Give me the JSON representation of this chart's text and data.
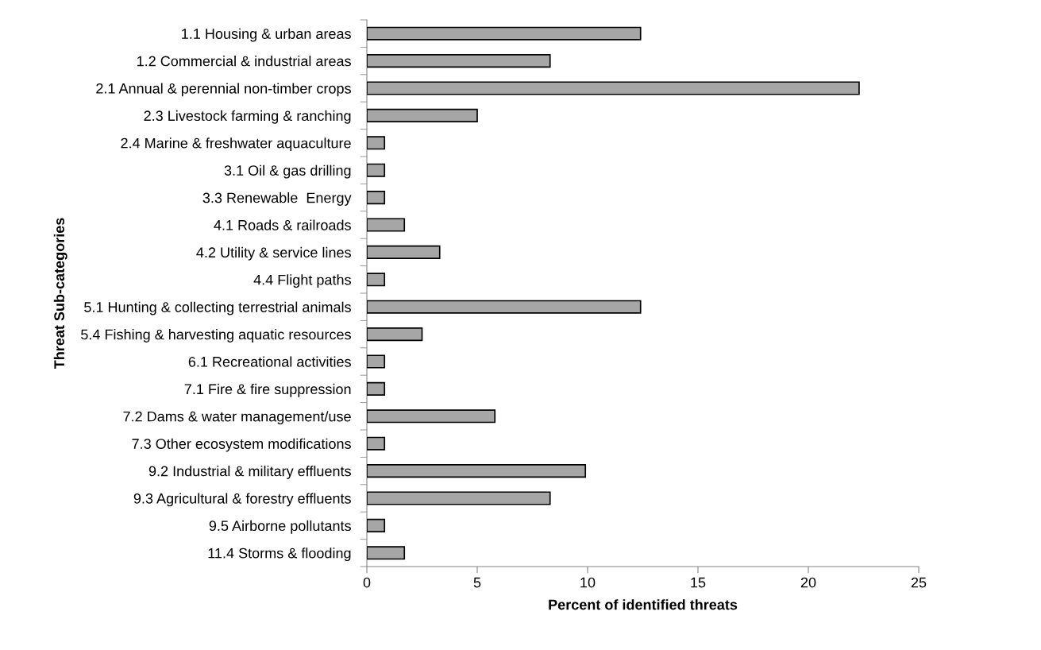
{
  "chart_data": {
    "type": "bar",
    "orientation": "horizontal",
    "xlabel": "Percent of identified threats",
    "ylabel": "Threat Sub-categories",
    "categories": [
      "1.1 Housing & urban areas",
      "1.2 Commercial & industrial areas",
      "2.1 Annual & perennial non-timber crops",
      "2.3 Livestock farming & ranching",
      "2.4 Marine & freshwater aquaculture",
      "3.1 Oil & gas drilling",
      "3.3 Renewable  Energy",
      "4.1 Roads & railroads",
      "4.2 Utility & service lines",
      "4.4 Flight paths",
      "5.1 Hunting & collecting terrestrial animals",
      "5.4 Fishing & harvesting aquatic resources",
      "6.1 Recreational activities",
      "7.1 Fire & fire suppression",
      "7.2 Dams & water management/use",
      "7.3 Other ecosystem modifications",
      "9.2 Industrial & military effluents",
      "9.3 Agricultural & forestry effluents",
      "9.5 Airborne pollutants",
      "11.4 Storms & flooding"
    ],
    "values": [
      12.4,
      8.3,
      22.3,
      5.0,
      0.8,
      0.8,
      0.8,
      1.7,
      3.3,
      0.8,
      12.4,
      2.5,
      0.8,
      0.8,
      5.8,
      0.8,
      9.9,
      8.3,
      0.8,
      1.7
    ],
    "color": "#a6a6a6",
    "xlim": [
      0,
      25
    ],
    "xticks": [
      0,
      5,
      10,
      15,
      20,
      25
    ],
    "grid": false,
    "legend": false
  }
}
